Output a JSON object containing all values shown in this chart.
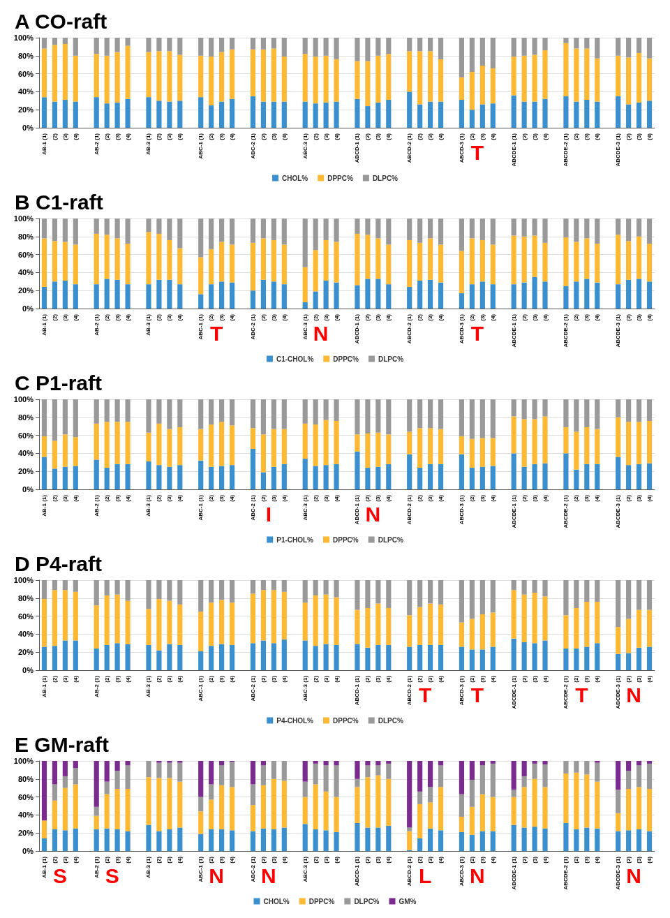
{
  "chart_data": [
    {
      "type": "bar",
      "title": "A CO-raft",
      "stacked": true,
      "grid": "y",
      "legend": "bottom",
      "categories": [
        "AB-1 (1)",
        "(2)",
        "(3)",
        "(4)",
        null,
        "AB-2 (1)",
        "(2)",
        "(3)",
        "(4)",
        null,
        "AB-3 (1)",
        "(2)",
        "(3)",
        "(4)",
        null,
        "ABC-1 (1)",
        "(2)",
        "(3)",
        "(4)",
        null,
        "ABC-2 (1)",
        "(2)",
        "(3)",
        "(4)",
        null,
        "ABC-3 (1)",
        "(2)",
        "(3)",
        "(4)",
        null,
        "ABCD-1 (1)",
        "(2)",
        "(3)",
        "(4)",
        null,
        "ABCD-2 (1)",
        "(2)",
        "(3)",
        "(4)",
        null,
        "ABCD-3 (1)",
        "(2)",
        "(3)",
        "(4)",
        null,
        "ABCDE-1 (1)",
        "(2)",
        "(3)",
        "(4)",
        null,
        "ABCDE-2 (1)",
        "(2)",
        "(3)",
        "(4)",
        null,
        "ABCDE-3 (1)",
        "(2)",
        "(3)",
        "(4)"
      ],
      "ylim": [
        0,
        100
      ],
      "yticks": [
        {
          "value": 0,
          "label": "0%"
        },
        {
          "value": 20,
          "label": "20%"
        },
        {
          "value": 40,
          "label": "40%"
        },
        {
          "value": 60,
          "label": "60%"
        },
        {
          "value": 80,
          "label": "80%"
        },
        {
          "value": 100,
          "label": "100%"
        }
      ],
      "annotations": [
        "T"
      ],
      "series": [
        {
          "name": "CHOL%",
          "color": "#3a8fcf",
          "values": [
            34,
            29,
            31,
            29,
            null,
            34,
            27,
            28,
            32,
            null,
            34,
            30,
            29,
            30,
            null,
            34,
            25,
            29,
            32,
            null,
            35,
            29,
            29,
            29,
            null,
            29,
            27,
            28,
            29,
            null,
            32,
            24,
            28,
            31,
            null,
            40,
            26,
            29,
            29,
            null,
            31,
            20,
            26,
            27,
            null,
            36,
            29,
            29,
            32,
            null,
            35,
            29,
            31,
            29,
            null,
            35,
            26,
            28,
            30
          ]
        },
        {
          "name": "DPPC%",
          "color": "#fdb933",
          "values": [
            54,
            63,
            62,
            51,
            null,
            48,
            53,
            56,
            59,
            null,
            50,
            55,
            56,
            51,
            null,
            46,
            54,
            55,
            55,
            null,
            52,
            58,
            59,
            50,
            null,
            53,
            52,
            52,
            47,
            null,
            42,
            50,
            52,
            51,
            null,
            45,
            59,
            56,
            47,
            null,
            25,
            42,
            43,
            39,
            null,
            43,
            51,
            52,
            54,
            null,
            59,
            59,
            57,
            48,
            null,
            45,
            52,
            55,
            47
          ]
        },
        {
          "name": "DLPC%",
          "color": "#999999",
          "values": [
            12,
            8,
            7,
            20,
            null,
            18,
            20,
            16,
            9,
            null,
            16,
            15,
            15,
            19,
            null,
            20,
            21,
            16,
            13,
            null,
            13,
            13,
            12,
            21,
            null,
            18,
            21,
            20,
            24,
            null,
            26,
            26,
            20,
            18,
            null,
            15,
            15,
            15,
            24,
            null,
            44,
            38,
            31,
            34,
            null,
            21,
            20,
            19,
            14,
            null,
            6,
            12,
            12,
            23,
            null,
            20,
            22,
            17,
            23
          ]
        }
      ]
    },
    {
      "type": "bar",
      "title": "B C1-raft",
      "stacked": true,
      "grid": "y",
      "legend": "bottom",
      "categories": [
        "AB-1 (1)",
        "(2)",
        "(3)",
        "(4)",
        null,
        "AB-2 (1)",
        "(2)",
        "(3)",
        "(4)",
        null,
        "AB-3 (1)",
        "(2)",
        "(3)",
        "(4)",
        null,
        "ABC-1 (1)",
        "(2)",
        "(3)",
        "(4)",
        null,
        "ABC-2 (1)",
        "(2)",
        "(3)",
        "(4)",
        null,
        "ABC-3 (1)",
        "(2)",
        "(3)",
        "(4)",
        null,
        "ABCD-1 (1)",
        "(2)",
        "(3)",
        "(4)",
        null,
        "ABCD-2 (1)",
        "(2)",
        "(3)",
        "(4)",
        null,
        "ABCD-3 (1)",
        "(2)",
        "(3)",
        "(4)",
        null,
        "ABCDE-1 (1)",
        "(2)",
        "(3)",
        "(4)",
        null,
        "ABCDE-2 (1)",
        "(2)",
        "(3)",
        "(4)",
        null,
        "ABCDE-3 (1)",
        "(2)",
        "(3)",
        "(4)"
      ],
      "ylim": [
        0,
        100
      ],
      "yticks": [
        {
          "value": 0,
          "label": "0%"
        },
        {
          "value": 20,
          "label": "20%"
        },
        {
          "value": 40,
          "label": "40%"
        },
        {
          "value": 60,
          "label": "60%"
        },
        {
          "value": 80,
          "label": "80%"
        },
        {
          "value": 100,
          "label": "100%"
        }
      ],
      "annotations": [
        "T",
        "N",
        "T"
      ],
      "series": [
        {
          "name": "C1-CHOL%",
          "color": "#3a8fcf",
          "values": [
            24,
            30,
            31,
            27,
            null,
            27,
            33,
            32,
            27,
            null,
            27,
            32,
            32,
            27,
            null,
            16,
            27,
            30,
            29,
            null,
            20,
            32,
            30,
            27,
            null,
            7,
            19,
            31,
            29,
            null,
            26,
            33,
            33,
            27,
            null,
            24,
            31,
            32,
            29,
            null,
            17,
            27,
            30,
            27,
            null,
            27,
            29,
            35,
            30,
            null,
            25,
            30,
            33,
            29,
            null,
            27,
            32,
            33,
            30
          ]
        },
        {
          "name": "DPPC%",
          "color": "#fdb933",
          "values": [
            54,
            45,
            43,
            44,
            null,
            56,
            49,
            46,
            45,
            null,
            58,
            51,
            44,
            40,
            null,
            41,
            39,
            44,
            42,
            null,
            53,
            46,
            46,
            44,
            null,
            39,
            46,
            45,
            45,
            null,
            57,
            49,
            45,
            44,
            null,
            52,
            42,
            46,
            42,
            null,
            47,
            51,
            46,
            44,
            null,
            54,
            51,
            46,
            43,
            null,
            54,
            44,
            45,
            43,
            null,
            55,
            43,
            47,
            42
          ]
        },
        {
          "name": "DLPC%",
          "color": "#999999",
          "values": [
            22,
            25,
            26,
            29,
            null,
            17,
            18,
            22,
            28,
            null,
            15,
            17,
            24,
            33,
            null,
            43,
            34,
            26,
            29,
            null,
            27,
            22,
            24,
            29,
            null,
            54,
            35,
            24,
            26,
            null,
            17,
            18,
            22,
            29,
            null,
            24,
            27,
            22,
            29,
            null,
            36,
            22,
            24,
            29,
            null,
            19,
            20,
            19,
            27,
            null,
            21,
            26,
            22,
            28,
            null,
            18,
            25,
            20,
            28
          ]
        }
      ]
    },
    {
      "type": "bar",
      "title": "C P1-raft",
      "stacked": true,
      "grid": "y",
      "legend": "bottom",
      "categories": [
        "AB-1 (1)",
        "(2)",
        "(3)",
        "(4)",
        null,
        "AB-2 (1)",
        "(2)",
        "(3)",
        "(4)",
        null,
        "AB-3 (1)",
        "(2)",
        "(3)",
        "(4)",
        null,
        "ABC-1 (1)",
        "(2)",
        "(3)",
        "(4)",
        null,
        "ABC-2 (1)",
        "(2)",
        "(3)",
        "(4)",
        null,
        "ABC-3 (1)",
        "(2)",
        "(3)",
        "(4)",
        null,
        "ABCD-1 (1)",
        "(2)",
        "(3)",
        "(4)",
        null,
        "ABCD-2 (1)",
        "(2)",
        "(3)",
        "(4)",
        null,
        "ABCD-3 (1)",
        "(2)",
        "(3)",
        "(4)",
        null,
        "ABCDE-1 (1)",
        "(2)",
        "(3)",
        "(4)",
        null,
        "ABCDE-2 (1)",
        "(2)",
        "(3)",
        "(4)",
        null,
        "ABCDE-3 (1)",
        "(2)",
        "(3)",
        "(4)"
      ],
      "ylim": [
        0,
        100
      ],
      "yticks": [
        {
          "value": 0,
          "label": "0%"
        },
        {
          "value": 20,
          "label": "20%"
        },
        {
          "value": 40,
          "label": "40%"
        },
        {
          "value": 60,
          "label": "60%"
        },
        {
          "value": 80,
          "label": "80%"
        },
        {
          "value": 100,
          "label": "100%"
        }
      ],
      "annotations": [
        "I",
        "N"
      ],
      "series": [
        {
          "name": "P1-CHOL%",
          "color": "#3a8fcf",
          "values": [
            36,
            23,
            25,
            26,
            null,
            33,
            24,
            28,
            28,
            null,
            31,
            27,
            25,
            27,
            null,
            32,
            25,
            26,
            27,
            null,
            45,
            19,
            25,
            28,
            null,
            34,
            26,
            27,
            28,
            null,
            42,
            24,
            25,
            28,
            null,
            39,
            24,
            28,
            28,
            null,
            39,
            24,
            25,
            26,
            null,
            40,
            25,
            28,
            29,
            null,
            40,
            22,
            28,
            28,
            null,
            36,
            27,
            28,
            29
          ]
        },
        {
          "name": "DPPC%",
          "color": "#fdb933",
          "values": [
            23,
            31,
            36,
            32,
            null,
            40,
            51,
            47,
            47,
            null,
            32,
            46,
            42,
            42,
            null,
            35,
            47,
            49,
            44,
            null,
            23,
            42,
            42,
            39,
            null,
            39,
            46,
            50,
            48,
            null,
            19,
            38,
            38,
            33,
            null,
            25,
            44,
            40,
            39,
            null,
            20,
            32,
            32,
            31,
            null,
            41,
            53,
            50,
            52,
            null,
            29,
            42,
            41,
            39,
            null,
            44,
            48,
            47,
            47
          ]
        },
        {
          "name": "DLPC%",
          "color": "#999999",
          "values": [
            41,
            46,
            39,
            42,
            null,
            27,
            25,
            25,
            25,
            null,
            37,
            27,
            33,
            31,
            null,
            33,
            28,
            25,
            29,
            null,
            32,
            39,
            33,
            33,
            null,
            27,
            28,
            23,
            24,
            null,
            39,
            38,
            37,
            39,
            null,
            36,
            32,
            32,
            33,
            null,
            41,
            44,
            43,
            43,
            null,
            19,
            22,
            22,
            19,
            null,
            31,
            36,
            31,
            33,
            null,
            20,
            25,
            25,
            24
          ]
        }
      ]
    },
    {
      "type": "bar",
      "title": "D P4-raft",
      "stacked": true,
      "grid": "y",
      "legend": "bottom",
      "categories": [
        "AB-1 (1)",
        "(2)",
        "(3)",
        "(4)",
        null,
        "AB-2 (1)",
        "(2)",
        "(3)",
        "(4)",
        null,
        "AB-3 (1)",
        "(2)",
        "(3)",
        "(4)",
        null,
        "ABC-1 (1)",
        "(2)",
        "(3)",
        "(4)",
        null,
        "ABC-2 (1)",
        "(2)",
        "(3)",
        "(4)",
        null,
        "ABC-3 (1)",
        "(2)",
        "(3)",
        "(4)",
        null,
        "ABCD-1 (1)",
        "(2)",
        "(3)",
        "(4)",
        null,
        "ABCD-2 (1)",
        "(2)",
        "(3)",
        "(4)",
        null,
        "ABCD-3 (1)",
        "(2)",
        "(3)",
        "(4)",
        null,
        "ABCDE-1 (1)",
        "(2)",
        "(3)",
        "(4)",
        null,
        "ABCDE-2 (1)",
        "(2)",
        "(3)",
        "(4)",
        null,
        "ABCDE-3 (1)",
        "(2)",
        "(3)",
        "(4)"
      ],
      "ylim": [
        0,
        100
      ],
      "yticks": [
        {
          "value": 0,
          "label": "0%"
        },
        {
          "value": 20,
          "label": "20%"
        },
        {
          "value": 40,
          "label": "40%"
        },
        {
          "value": 60,
          "label": "60%"
        },
        {
          "value": 80,
          "label": "80%"
        },
        {
          "value": 100,
          "label": "100%"
        }
      ],
      "annotations": [
        "T",
        "T",
        "T",
        "N"
      ],
      "series": [
        {
          "name": "P4-CHOL%",
          "color": "#3a8fcf",
          "values": [
            26,
            27,
            33,
            33,
            null,
            24,
            28,
            30,
            29,
            null,
            28,
            22,
            29,
            28,
            null,
            21,
            27,
            29,
            28,
            null,
            30,
            33,
            30,
            34,
            null,
            33,
            27,
            29,
            28,
            null,
            29,
            25,
            28,
            28,
            null,
            26,
            28,
            28,
            28,
            null,
            26,
            23,
            23,
            26,
            null,
            35,
            31,
            30,
            33,
            null,
            24,
            24,
            26,
            30,
            null,
            18,
            19,
            25,
            26
          ]
        },
        {
          "name": "DPPC%",
          "color": "#fdb933",
          "values": [
            53,
            62,
            56,
            54,
            null,
            48,
            55,
            54,
            48,
            null,
            40,
            57,
            48,
            45,
            null,
            44,
            48,
            49,
            47,
            null,
            55,
            56,
            59,
            53,
            null,
            42,
            56,
            55,
            53,
            null,
            38,
            44,
            46,
            41,
            null,
            35,
            42,
            46,
            45,
            null,
            27,
            34,
            39,
            38,
            null,
            54,
            53,
            56,
            49,
            null,
            37,
            45,
            50,
            46,
            null,
            30,
            38,
            42,
            41
          ]
        },
        {
          "name": "DLPC%",
          "color": "#999999",
          "values": [
            21,
            11,
            11,
            13,
            null,
            28,
            17,
            16,
            23,
            null,
            32,
            21,
            23,
            27,
            null,
            35,
            25,
            22,
            25,
            null,
            15,
            11,
            11,
            13,
            null,
            25,
            17,
            16,
            19,
            null,
            33,
            31,
            26,
            31,
            null,
            39,
            30,
            26,
            27,
            null,
            47,
            43,
            38,
            36,
            null,
            11,
            16,
            14,
            18,
            null,
            39,
            31,
            24,
            24,
            null,
            52,
            43,
            33,
            33
          ]
        }
      ]
    },
    {
      "type": "bar",
      "title": "E GM-raft",
      "stacked": true,
      "grid": "y",
      "legend": "bottom",
      "categories": [
        "AB-1 (1)",
        "(2)",
        "(3)",
        "(4)",
        null,
        "AB-2 (1)",
        "(2)",
        "(3)",
        "(4)",
        null,
        "AB-3 (1)",
        "(2)",
        "(3)",
        "(4)",
        null,
        "ABC-1 (1)",
        "(2)",
        "(3)",
        "(4)",
        null,
        "ABC-2 (1)",
        "(2)",
        "(3)",
        "(4)",
        null,
        "ABC-3 (1)",
        "(2)",
        "(3)",
        "(4)",
        null,
        "ABCD-1 (1)",
        "(2)",
        "(3)",
        "(4)",
        null,
        "ABCD-2 (1)",
        "(2)",
        "(3)",
        "(4)",
        null,
        "ABCD-3 (1)",
        "(2)",
        "(3)",
        "(4)",
        null,
        "ABCDE-1 (1)",
        "(2)",
        "(3)",
        "(4)",
        null,
        "ABCDE-2 (1)",
        "(2)",
        "(3)",
        "(4)",
        null,
        "ABCDE-3 (1)",
        "(2)",
        "(3)",
        "(4)"
      ],
      "ylim": [
        0,
        100
      ],
      "yticks": [
        {
          "value": 0,
          "label": "0%"
        },
        {
          "value": 20,
          "label": "20%"
        },
        {
          "value": 40,
          "label": "40%"
        },
        {
          "value": 60,
          "label": "60%"
        },
        {
          "value": 80,
          "label": "80%"
        },
        {
          "value": 100,
          "label": "100%"
        }
      ],
      "annotations": [
        "S",
        "S",
        "N",
        "N",
        "L",
        "N",
        "N"
      ],
      "series": [
        {
          "name": "CHOL%",
          "color": "#3a8fcf",
          "values": [
            14,
            24,
            23,
            25,
            null,
            24,
            25,
            24,
            22,
            null,
            29,
            22,
            24,
            26,
            null,
            19,
            24,
            24,
            23,
            null,
            22,
            25,
            24,
            26,
            null,
            30,
            24,
            23,
            21,
            null,
            31,
            26,
            26,
            28,
            null,
            1,
            14,
            25,
            23,
            null,
            21,
            18,
            22,
            22,
            null,
            29,
            26,
            27,
            25,
            null,
            31,
            24,
            26,
            25,
            null,
            22,
            23,
            24,
            22
          ]
        },
        {
          "name": "DPPC%",
          "color": "#fdb933",
          "values": [
            20,
            32,
            47,
            49,
            null,
            15,
            38,
            45,
            47,
            null,
            53,
            59,
            57,
            51,
            null,
            25,
            33,
            49,
            48,
            null,
            29,
            48,
            56,
            52,
            null,
            30,
            50,
            43,
            39,
            null,
            40,
            56,
            58,
            52,
            null,
            21,
            38,
            29,
            48,
            null,
            17,
            31,
            41,
            38,
            null,
            31,
            45,
            53,
            46,
            null,
            55,
            63,
            59,
            52,
            null,
            20,
            46,
            47,
            47
          ]
        },
        {
          "name": "DLPC%",
          "color": "#999999",
          "values": [
            0,
            18,
            13,
            18,
            null,
            10,
            14,
            20,
            26,
            null,
            18,
            17,
            17,
            21,
            null,
            16,
            17,
            22,
            28,
            null,
            23,
            22,
            20,
            22,
            null,
            17,
            23,
            29,
            35,
            null,
            9,
            13,
            11,
            17,
            null,
            4,
            14,
            17,
            24,
            null,
            25,
            30,
            32,
            37,
            null,
            8,
            12,
            17,
            25,
            null,
            14,
            13,
            15,
            21,
            null,
            26,
            20,
            24,
            28
          ]
        },
        {
          "name": "GM%",
          "color": "#7b2a8f",
          "values": [
            66,
            26,
            17,
            8,
            null,
            51,
            23,
            11,
            5,
            null,
            0,
            2,
            2,
            2,
            null,
            40,
            26,
            5,
            1,
            null,
            26,
            5,
            0,
            0,
            null,
            23,
            3,
            5,
            5,
            null,
            20,
            5,
            5,
            3,
            null,
            74,
            34,
            29,
            5,
            null,
            37,
            21,
            5,
            3,
            null,
            32,
            17,
            3,
            4,
            null,
            0,
            0,
            0,
            2,
            null,
            32,
            11,
            5,
            3
          ]
        }
      ]
    }
  ]
}
